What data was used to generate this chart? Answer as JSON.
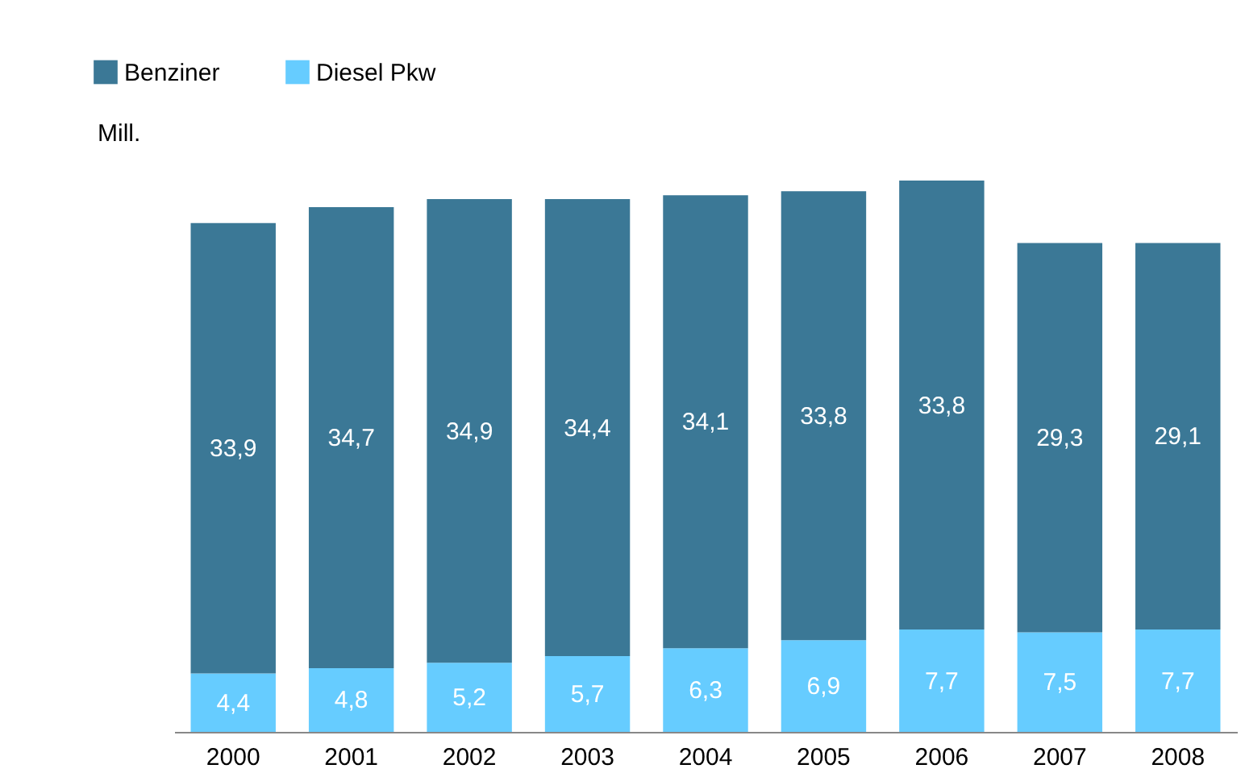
{
  "chart_data": {
    "type": "bar",
    "stacked": true,
    "ylabel": "Mill.",
    "legend": "top left",
    "categories": [
      "2000",
      "2001",
      "2002",
      "2003",
      "2004",
      "2005",
      "2006",
      "2007",
      "2008"
    ],
    "series": [
      {
        "name": "Diesel Pkw",
        "color": "#66ccff",
        "values": [
          4.4,
          4.8,
          5.2,
          5.7,
          6.3,
          6.9,
          7.7,
          7.5,
          7.7
        ],
        "value_labels": [
          "4,4",
          "4,8",
          "5,2",
          "5,7",
          "6,3",
          "6,9",
          "7,7",
          "7,5",
          "7,7"
        ]
      },
      {
        "name": "Benziner",
        "color": "#3b7896",
        "values": [
          33.9,
          34.7,
          34.9,
          34.4,
          34.1,
          33.8,
          33.8,
          29.3,
          29.1
        ],
        "value_labels": [
          "33,9",
          "34,7",
          "34,9",
          "34,4",
          "34,1",
          "33,8",
          "33,8",
          "29,3",
          "29,1"
        ]
      }
    ]
  }
}
